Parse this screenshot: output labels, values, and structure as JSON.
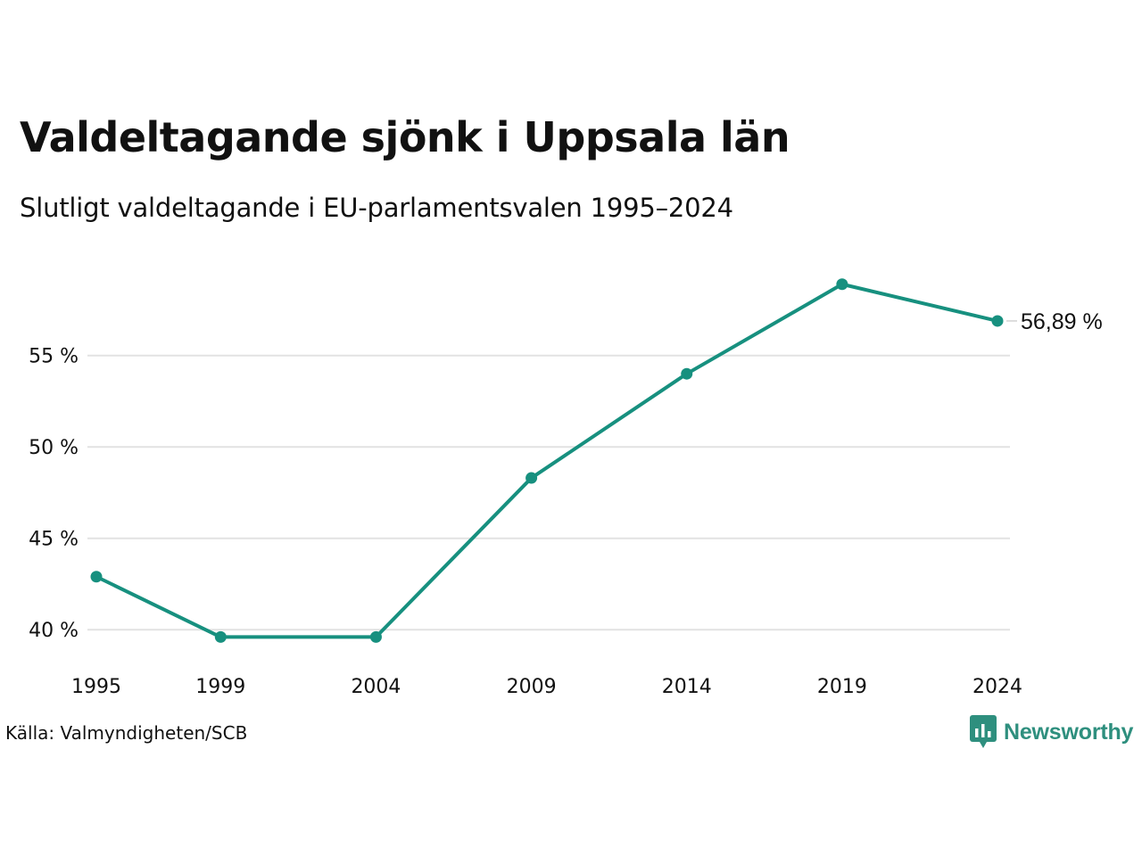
{
  "title": "Valdeltagande sjönk i Uppsala län",
  "subtitle": "Slutligt valdeltagande i EU-parlamentsvalen 1995–2024",
  "source": "Källa: Valmyndigheten/SCB",
  "brand": {
    "name": "Newsworthy",
    "icon": "newsworthy-logo-icon",
    "color": "#2e8f7e"
  },
  "colors": {
    "line": "#17907f",
    "grid": "#e2e2e2"
  },
  "chart_data": {
    "type": "line",
    "x": [
      1995,
      1999,
      2004,
      2009,
      2014,
      2019,
      2024
    ],
    "xTickLabels": [
      "1995",
      "1999",
      "2004",
      "2009",
      "2014",
      "2019",
      "2024"
    ],
    "values": [
      42.9,
      39.6,
      39.6,
      48.3,
      54.0,
      58.9,
      56.89
    ],
    "ylim": [
      38.4,
      60.4
    ],
    "yTicks": [
      40,
      45,
      50,
      55
    ],
    "yTickLabels": [
      "40 %",
      "45 %",
      "50 %",
      "55 %"
    ],
    "endLabel": "56,89 %",
    "grid": true
  }
}
